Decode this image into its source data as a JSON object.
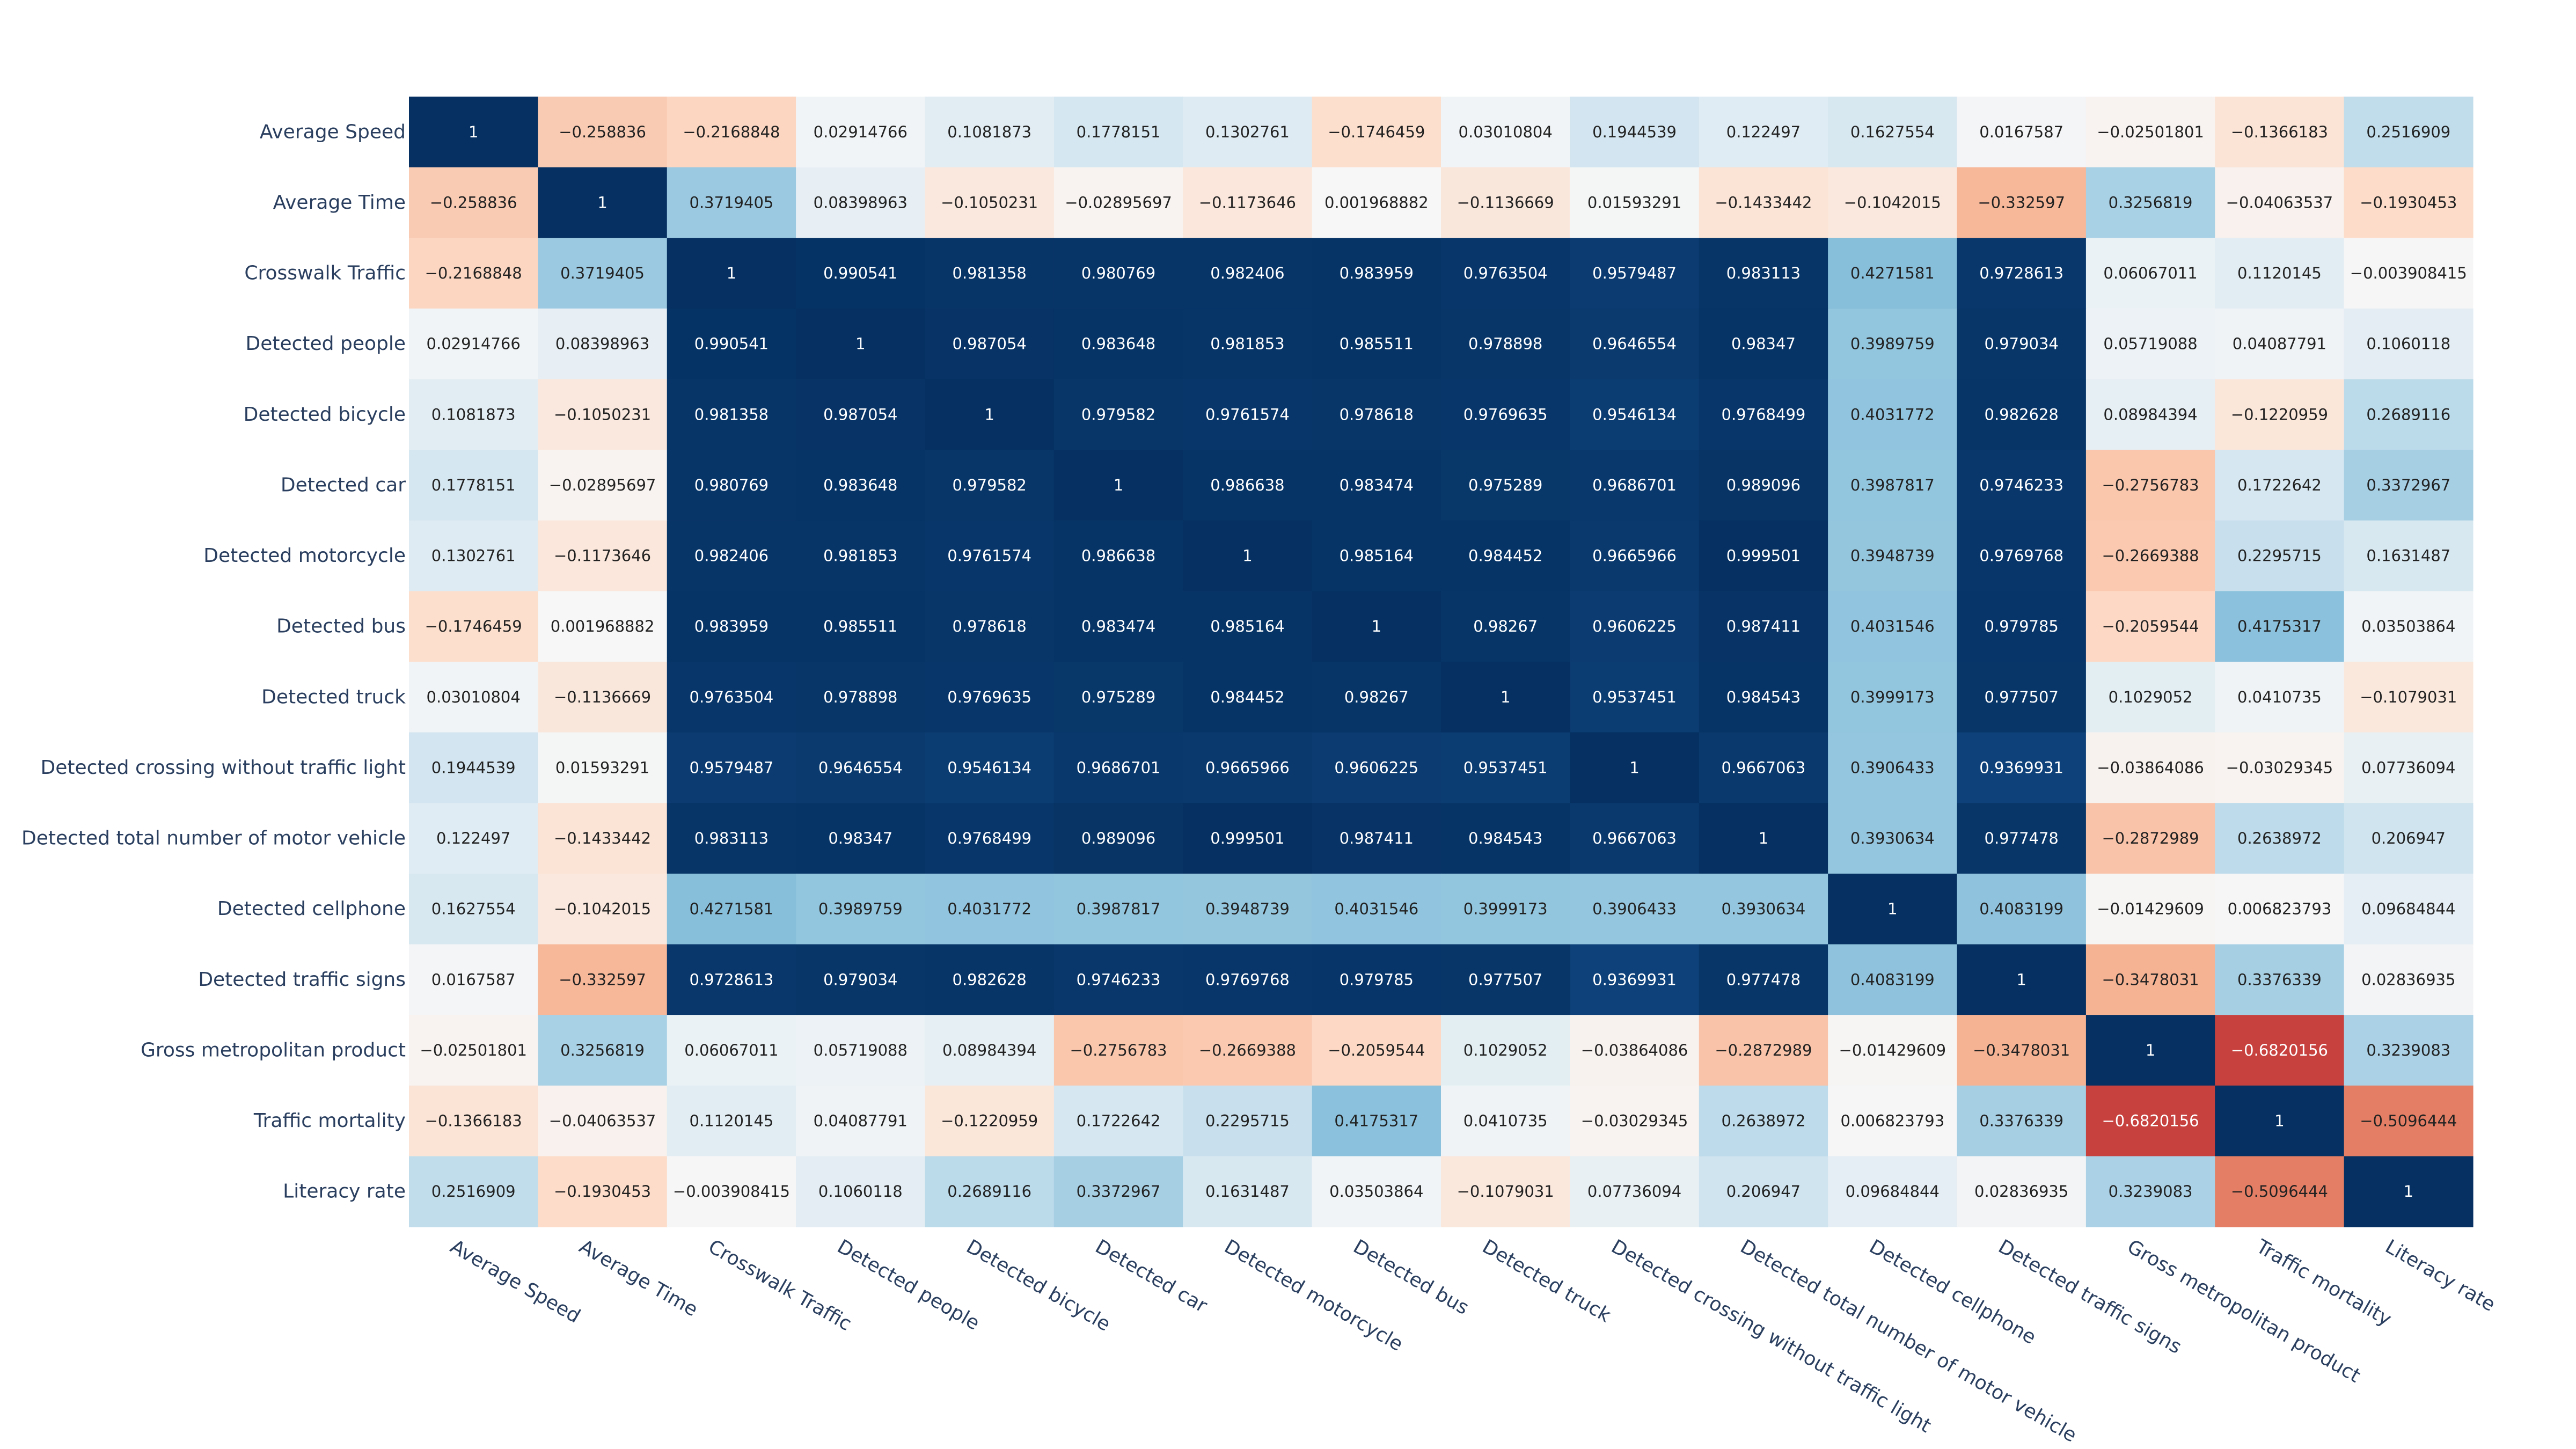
{
  "chart_data": {
    "type": "heatmap",
    "colorscale": "RdBu",
    "zmin": -1,
    "zmax": 1,
    "labels": [
      "Average Speed",
      "Average Time",
      "Crosswalk Traffic",
      "Detected people",
      "Detected bicycle",
      "Detected car",
      "Detected motorcycle",
      "Detected bus",
      "Detected truck",
      "Detected crossing without traffic light",
      "Detected total number of motor vehicle",
      "Detected cellphone",
      "Detected traffic signs",
      "Gross metropolitan product",
      "Traffic mortality",
      "Literacy rate"
    ],
    "matrix": [
      [
        "1",
        "−0.258836",
        "−0.2168848",
        "0.02914766",
        "0.1081873",
        "0.1778151",
        "0.1302761",
        "−0.1746459",
        "0.03010804",
        "0.1944539",
        "0.122497",
        "0.1627554",
        "0.0167587",
        "−0.02501801",
        "−0.1366183",
        "0.2516909"
      ],
      [
        "−0.258836",
        "1",
        "0.3719405",
        "0.08398963",
        "−0.1050231",
        "−0.02895697",
        "−0.1173646",
        "0.001968882",
        "−0.1136669",
        "0.01593291",
        "−0.1433442",
        "−0.1042015",
        "−0.332597",
        "0.3256819",
        "−0.04063537",
        "−0.1930453"
      ],
      [
        "−0.2168848",
        "0.3719405",
        "1",
        "0.990541",
        "0.981358",
        "0.980769",
        "0.982406",
        "0.983959",
        "0.9763504",
        "0.9579487",
        "0.983113",
        "0.4271581",
        "0.9728613",
        "0.06067011",
        "0.1120145",
        "−0.003908415"
      ],
      [
        "0.02914766",
        "0.08398963",
        "0.990541",
        "1",
        "0.987054",
        "0.983648",
        "0.981853",
        "0.985511",
        "0.978898",
        "0.9646554",
        "0.98347",
        "0.3989759",
        "0.979034",
        "0.05719088",
        "0.04087791",
        "0.1060118"
      ],
      [
        "0.1081873",
        "−0.1050231",
        "0.981358",
        "0.987054",
        "1",
        "0.979582",
        "0.9761574",
        "0.978618",
        "0.9769635",
        "0.9546134",
        "0.9768499",
        "0.4031772",
        "0.982628",
        "0.08984394",
        "−0.1220959",
        "0.2689116"
      ],
      [
        "0.1778151",
        "−0.02895697",
        "0.980769",
        "0.983648",
        "0.979582",
        "1",
        "0.986638",
        "0.983474",
        "0.975289",
        "0.9686701",
        "0.989096",
        "0.3987817",
        "0.9746233",
        "−0.2756783",
        "0.1722642",
        "0.3372967"
      ],
      [
        "0.1302761",
        "−0.1173646",
        "0.982406",
        "0.981853",
        "0.9761574",
        "0.986638",
        "1",
        "0.985164",
        "0.984452",
        "0.9665966",
        "0.999501",
        "0.3948739",
        "0.9769768",
        "−0.2669388",
        "0.2295715",
        "0.1631487"
      ],
      [
        "−0.1746459",
        "0.001968882",
        "0.983959",
        "0.985511",
        "0.978618",
        "0.983474",
        "0.985164",
        "1",
        "0.98267",
        "0.9606225",
        "0.987411",
        "0.4031546",
        "0.979785",
        "−0.2059544",
        "0.4175317",
        "0.03503864"
      ],
      [
        "0.03010804",
        "−0.1136669",
        "0.9763504",
        "0.978898",
        "0.9769635",
        "0.975289",
        "0.984452",
        "0.98267",
        "1",
        "0.9537451",
        "0.984543",
        "0.3999173",
        "0.977507",
        "0.1029052",
        "0.0410735",
        "−0.1079031"
      ],
      [
        "0.1944539",
        "0.01593291",
        "0.9579487",
        "0.9646554",
        "0.9546134",
        "0.9686701",
        "0.9665966",
        "0.9606225",
        "0.9537451",
        "1",
        "0.9667063",
        "0.3906433",
        "0.9369931",
        "−0.03864086",
        "−0.03029345",
        "0.07736094"
      ],
      [
        "0.122497",
        "−0.1433442",
        "0.983113",
        "0.98347",
        "0.9768499",
        "0.989096",
        "0.999501",
        "0.987411",
        "0.984543",
        "0.9667063",
        "1",
        "0.3930634",
        "0.977478",
        "−0.2872989",
        "0.2638972",
        "0.206947"
      ],
      [
        "0.1627554",
        "−0.1042015",
        "0.4271581",
        "0.3989759",
        "0.4031772",
        "0.3987817",
        "0.3948739",
        "0.4031546",
        "0.3999173",
        "0.3906433",
        "0.3930634",
        "1",
        "0.4083199",
        "−0.01429609",
        "0.006823793",
        "0.09684844"
      ],
      [
        "0.0167587",
        "−0.332597",
        "0.9728613",
        "0.979034",
        "0.982628",
        "0.9746233",
        "0.9769768",
        "0.979785",
        "0.977507",
        "0.9369931",
        "0.977478",
        "0.4083199",
        "1",
        "−0.3478031",
        "0.3376339",
        "0.02836935"
      ],
      [
        "−0.02501801",
        "0.3256819",
        "0.06067011",
        "0.05719088",
        "0.08984394",
        "−0.2756783",
        "−0.2669388",
        "−0.2059544",
        "0.1029052",
        "−0.03864086",
        "−0.2872989",
        "−0.01429609",
        "−0.3478031",
        "1",
        "−0.6820156",
        "0.3239083"
      ],
      [
        "−0.1366183",
        "−0.04063537",
        "0.1120145",
        "0.04087791",
        "−0.1220959",
        "0.1722642",
        "0.2295715",
        "0.4175317",
        "0.0410735",
        "−0.03029345",
        "0.2638972",
        "0.006823793",
        "0.3376339",
        "−0.6820156",
        "1",
        "−0.5096444"
      ],
      [
        "0.2516909",
        "−0.1930453",
        "−0.003908415",
        "0.1060118",
        "0.2689116",
        "0.3372967",
        "0.1631487",
        "0.03503864",
        "−0.1079031",
        "0.07736094",
        "0.206947",
        "0.09684844",
        "0.02836935",
        "0.3239083",
        "−0.5096444",
        "1"
      ]
    ]
  }
}
